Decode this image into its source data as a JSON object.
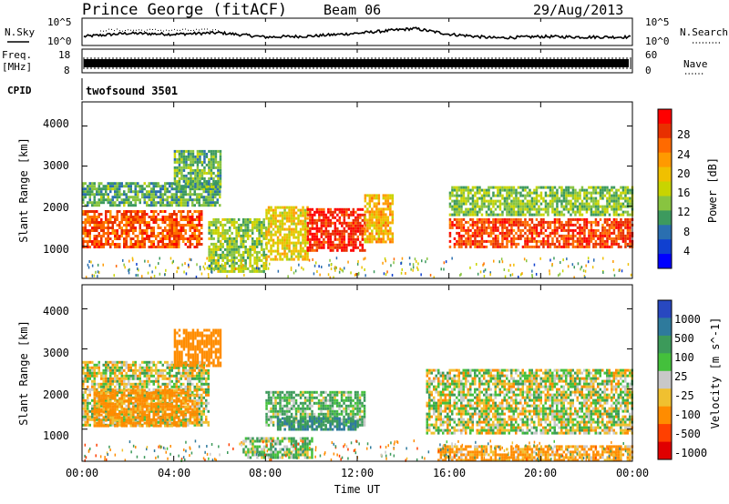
{
  "header": {
    "station": "Prince George (fitACF)",
    "beam": "Beam 06",
    "date": "29/Aug/2013"
  },
  "noise_panel": {
    "left_label": "N.Sky",
    "left_ticks": [
      "10^5",
      "10^0"
    ],
    "right_label": "N.Search",
    "right_ticks": [
      "10^5",
      "10^0"
    ]
  },
  "freq_panel": {
    "left_label_line1": "Freq.",
    "left_label_line2": "[MHz]",
    "left_ticks": [
      "18",
      "8"
    ],
    "right_label": "Nave",
    "right_ticks": [
      "60",
      "0"
    ]
  },
  "cpid_panel": {
    "left_label": "CPID",
    "program": "twofsound 3501"
  },
  "power_panel": {
    "ylabel": "Slant Range [km]",
    "yticks": [
      "4000",
      "3000",
      "2000",
      "1000"
    ],
    "colorbar_label": "Power [dB]",
    "colorbar_ticks": [
      "28",
      "24",
      "20",
      "16",
      "12",
      "8",
      "4"
    ],
    "colorbar_colors": [
      "#ff0000",
      "#e83000",
      "#ff6a00",
      "#ff9a00",
      "#f0c000",
      "#c8d400",
      "#88c440",
      "#3d9a5e",
      "#2a6fb0",
      "#1040d0",
      "#0000ff"
    ]
  },
  "velocity_panel": {
    "ylabel": "Slant Range [km]",
    "yticks": [
      "4000",
      "3000",
      "2000",
      "1000"
    ],
    "colorbar_label": "Velocity [m s^-1]",
    "colorbar_ticks": [
      "1000",
      "500",
      "100",
      "25",
      "-25",
      "-100",
      "-500",
      "-1000"
    ],
    "colorbar_colors": [
      "#2848c0",
      "#2e7a9c",
      "#3c9a5a",
      "#44c03c",
      "#c8c8c8",
      "#f0c030",
      "#ff8c00",
      "#ff4000",
      "#e00000"
    ]
  },
  "xaxis": {
    "label": "Time UT",
    "ticks": [
      "00:00",
      "04:00",
      "08:00",
      "12:00",
      "16:00",
      "20:00",
      "00:00"
    ]
  },
  "chart_data": [
    {
      "type": "line",
      "title": "N.Sky / N.Search",
      "x_range_hours": [
        0,
        24
      ],
      "y_scale": "log",
      "ylim": [
        "10^0",
        "10^5"
      ],
      "x": [
        0,
        2,
        4,
        6,
        8,
        10,
        12,
        14,
        14.5,
        16,
        18,
        20,
        22,
        24
      ],
      "values": [
        "10^1.5",
        "10^2.2",
        "10^2.0",
        "10^2.3",
        "10^1.4",
        "10^1.6",
        "10^2.2",
        "10^3.0",
        "10^3.2",
        "10^2.0",
        "10^1.2",
        "10^1.5",
        "10^1.4",
        "10^1.4"
      ]
    },
    {
      "type": "line",
      "title": "Freq. / Nave",
      "x_range_hours": [
        0,
        24
      ],
      "ylim": [
        8,
        18
      ],
      "freq_mhz_approx": 11.0,
      "nave_range": [
        0,
        60
      ]
    },
    {
      "type": "heatmap",
      "title": "Power [dB]",
      "x_range_hours": [
        0,
        24
      ],
      "ylim": [
        200,
        4600
      ],
      "color_scale": [
        0,
        32
      ],
      "regions": [
        {
          "t": [
            0,
            5.2
          ],
          "range": [
            1000,
            1900
          ],
          "power": 26
        },
        {
          "t": [
            0,
            6.0
          ],
          "range": [
            2000,
            2600
          ],
          "power": 11
        },
        {
          "t": [
            4.0,
            6.0
          ],
          "range": [
            2500,
            3400
          ],
          "power": 12
        },
        {
          "t": [
            5.5,
            8.0
          ],
          "range": [
            400,
            1700
          ],
          "power": 14
        },
        {
          "t": [
            8.0,
            9.8
          ],
          "range": [
            700,
            2000
          ],
          "power": 18
        },
        {
          "t": [
            9.8,
            12.3
          ],
          "range": [
            900,
            1950
          ],
          "power": 29
        },
        {
          "t": [
            12.3,
            13.5
          ],
          "range": [
            1100,
            2300
          ],
          "power": 20
        },
        {
          "t": [
            16.0,
            24.0
          ],
          "range": [
            1000,
            1700
          ],
          "power": 27
        },
        {
          "t": [
            16.0,
            24.0
          ],
          "range": [
            1800,
            2500
          ],
          "power": 13
        }
      ]
    },
    {
      "type": "heatmap",
      "title": "Velocity [m s^-1]",
      "x_range_hours": [
        0,
        24
      ],
      "ylim": [
        200,
        4600
      ],
      "color_scale": [
        -1000,
        1000
      ],
      "regions": [
        {
          "t": [
            0,
            5.5
          ],
          "range": [
            1100,
            2700
          ],
          "velocity": 0
        },
        {
          "t": [
            4.0,
            6.0
          ],
          "range": [
            2600,
            3500
          ],
          "velocity": -300
        },
        {
          "t": [
            0.5,
            5.0
          ],
          "range": [
            1100,
            2000
          ],
          "velocity": -200
        },
        {
          "t": [
            8.0,
            12.3
          ],
          "range": [
            1100,
            1950
          ],
          "velocity": 100
        },
        {
          "t": [
            8.5,
            12.0
          ],
          "range": [
            1000,
            1300
          ],
          "velocity": 500
        },
        {
          "t": [
            7.0,
            10.0
          ],
          "range": [
            300,
            800
          ],
          "velocity": 60
        },
        {
          "t": [
            15.0,
            24.0
          ],
          "range": [
            900,
            2500
          ],
          "velocity": 0
        },
        {
          "t": [
            15.5,
            24.0
          ],
          "range": [
            250,
            600
          ],
          "velocity": -150
        }
      ]
    }
  ]
}
